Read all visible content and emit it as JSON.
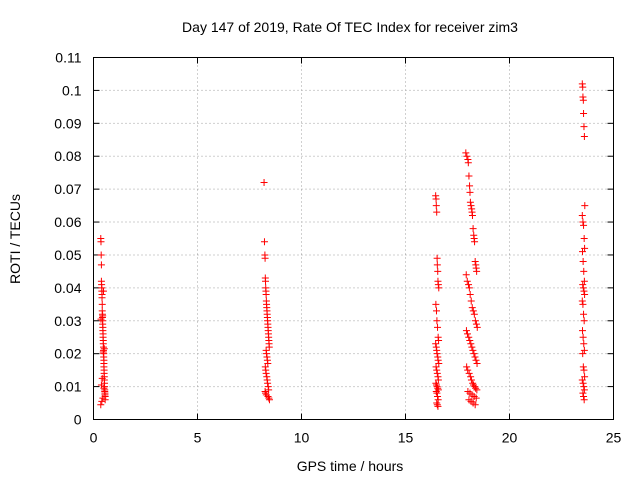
{
  "chart_data": {
    "type": "scatter",
    "title": "Day 147 of 2019, Rate Of TEC Index for receiver zim3",
    "xlabel": "GPS time / hours",
    "ylabel": "ROTI / TECUs",
    "xlim": [
      0,
      25
    ],
    "ylim": [
      0,
      0.11
    ],
    "xticks": [
      0,
      5,
      10,
      15,
      20,
      25
    ],
    "yticks": [
      0,
      0.01,
      0.02,
      0.03,
      0.04,
      0.05,
      0.06,
      0.07,
      0.08,
      0.09,
      0.1,
      0.11
    ],
    "xtick_labels": [
      "0",
      "5",
      "10",
      "15",
      "20",
      "25"
    ],
    "ytick_labels": [
      "0",
      "0.01",
      "0.02",
      "0.03",
      "0.04",
      "0.05",
      "0.06",
      "0.07",
      "0.08",
      "0.09",
      "0.1",
      "0.11"
    ],
    "grid": true,
    "marker": "+",
    "color": "#ff0000",
    "series": [
      {
        "x": [
          0.35,
          0.36,
          0.37,
          0.38,
          0.38,
          0.39,
          0.4,
          0.4,
          0.41,
          0.41,
          0.42,
          0.42,
          0.43,
          0.43,
          0.44,
          0.44,
          0.45,
          0.45,
          0.46,
          0.46,
          0.47,
          0.47,
          0.48,
          0.48,
          0.49,
          0.49,
          0.5,
          0.5,
          0.5,
          0.51,
          0.51,
          0.52,
          0.52,
          0.53,
          0.53,
          0.54,
          0.54,
          0.55,
          0.55,
          0.56,
          0.56,
          0.35,
          0.4,
          0.45,
          0.5,
          0.38,
          0.42,
          0.47,
          0.52,
          0.36,
          0.44,
          0.48
        ],
        "y": [
          0.055,
          0.054,
          0.05,
          0.047,
          0.042,
          0.041,
          0.04,
          0.039,
          0.038,
          0.037,
          0.035,
          0.033,
          0.032,
          0.031,
          0.03,
          0.029,
          0.028,
          0.027,
          0.026,
          0.025,
          0.024,
          0.023,
          0.022,
          0.021,
          0.02,
          0.019,
          0.018,
          0.017,
          0.016,
          0.015,
          0.014,
          0.013,
          0.012,
          0.011,
          0.01,
          0.009,
          0.0085,
          0.008,
          0.0075,
          0.007,
          0.006,
          0.0045,
          0.0055,
          0.0065,
          0.0095,
          0.0105,
          0.0125,
          0.0205,
          0.0215,
          0.0305,
          0.0315,
          0.039
        ]
      },
      {
        "x": [
          8.2,
          8.22,
          8.24,
          8.25,
          8.26,
          8.27,
          8.28,
          8.29,
          8.3,
          8.31,
          8.32,
          8.33,
          8.34,
          8.35,
          8.36,
          8.37,
          8.38,
          8.39,
          8.4,
          8.41,
          8.42,
          8.43,
          8.44,
          8.45,
          8.3,
          8.32,
          8.34,
          8.36,
          8.38,
          8.26,
          8.28,
          8.3,
          8.33,
          8.35,
          8.37,
          8.4,
          8.42,
          8.25,
          8.27,
          8.31,
          8.39,
          8.43,
          8.46
        ],
        "y": [
          0.072,
          0.054,
          0.05,
          0.049,
          0.043,
          0.042,
          0.04,
          0.039,
          0.038,
          0.036,
          0.035,
          0.034,
          0.033,
          0.032,
          0.031,
          0.03,
          0.029,
          0.028,
          0.027,
          0.026,
          0.025,
          0.024,
          0.023,
          0.022,
          0.021,
          0.02,
          0.019,
          0.018,
          0.017,
          0.016,
          0.015,
          0.014,
          0.013,
          0.012,
          0.011,
          0.01,
          0.009,
          0.0085,
          0.008,
          0.0075,
          0.007,
          0.0065,
          0.006
        ]
      },
      {
        "x": [
          16.45,
          16.47,
          16.48,
          16.5,
          16.52,
          16.53,
          16.55,
          16.56,
          16.58,
          16.6,
          16.46,
          16.49,
          16.51,
          16.54,
          16.57,
          16.59,
          16.45,
          16.48,
          16.5,
          16.52,
          16.55,
          16.57,
          16.6,
          16.47,
          16.5,
          16.53,
          16.56,
          16.58,
          16.46,
          16.49,
          16.52,
          16.55,
          16.58,
          16.48,
          16.51,
          16.54,
          16.57,
          16.5,
          16.53,
          16.56
        ],
        "y": [
          0.068,
          0.067,
          0.065,
          0.063,
          0.049,
          0.047,
          0.045,
          0.042,
          0.041,
          0.04,
          0.035,
          0.033,
          0.03,
          0.028,
          0.025,
          0.024,
          0.023,
          0.022,
          0.021,
          0.02,
          0.019,
          0.018,
          0.017,
          0.016,
          0.015,
          0.014,
          0.013,
          0.012,
          0.011,
          0.0105,
          0.01,
          0.0095,
          0.009,
          0.0085,
          0.008,
          0.007,
          0.006,
          0.005,
          0.0045,
          0.004
        ]
      },
      {
        "x": [
          17.9,
          17.95,
          18.0,
          18.02,
          18.05,
          18.08,
          18.1,
          18.12,
          18.15,
          18.18,
          18.2,
          18.22,
          18.25,
          18.28,
          18.3,
          18.32,
          18.35,
          18.38,
          18.4,
          18.42,
          17.92,
          17.97,
          18.03,
          18.07,
          18.11,
          18.16,
          18.21,
          18.26,
          18.31,
          18.36,
          18.41,
          18.45,
          17.93,
          17.98,
          18.04,
          18.09,
          18.14,
          18.19,
          18.24,
          18.29,
          18.34,
          18.39,
          18.44,
          17.94,
          17.99,
          18.06,
          18.13,
          18.17,
          18.23,
          18.27,
          18.33,
          18.37,
          18.43,
          18.0,
          18.1,
          18.2,
          18.3,
          18.4,
          18.05,
          18.15,
          18.25,
          18.35
        ],
        "y": [
          0.081,
          0.08,
          0.079,
          0.078,
          0.074,
          0.071,
          0.069,
          0.066,
          0.065,
          0.064,
          0.063,
          0.062,
          0.058,
          0.056,
          0.055,
          0.054,
          0.048,
          0.047,
          0.046,
          0.045,
          0.044,
          0.042,
          0.041,
          0.04,
          0.038,
          0.036,
          0.034,
          0.033,
          0.032,
          0.03,
          0.029,
          0.028,
          0.027,
          0.026,
          0.025,
          0.024,
          0.023,
          0.022,
          0.021,
          0.02,
          0.019,
          0.018,
          0.017,
          0.016,
          0.015,
          0.014,
          0.013,
          0.012,
          0.011,
          0.0105,
          0.01,
          0.0095,
          0.009,
          0.0085,
          0.008,
          0.0075,
          0.007,
          0.0065,
          0.006,
          0.0055,
          0.005,
          0.0045
        ]
      },
      {
        "x": [
          23.5,
          23.52,
          23.53,
          23.55,
          23.56,
          23.58,
          23.6,
          23.62,
          23.5,
          23.53,
          23.56,
          23.59,
          23.61,
          23.51,
          23.54,
          23.57,
          23.6,
          23.52,
          23.55,
          23.58,
          23.61,
          23.5,
          23.53,
          23.56,
          23.59,
          23.51,
          23.54,
          23.57,
          23.6,
          23.52,
          23.55,
          23.58,
          23.61,
          23.5,
          23.54,
          23.57,
          23.6,
          23.53,
          23.56,
          23.59
        ],
        "y": [
          0.102,
          0.101,
          0.098,
          0.097,
          0.093,
          0.089,
          0.086,
          0.065,
          0.062,
          0.06,
          0.059,
          0.055,
          0.052,
          0.051,
          0.048,
          0.045,
          0.042,
          0.041,
          0.04,
          0.039,
          0.038,
          0.036,
          0.035,
          0.032,
          0.03,
          0.027,
          0.025,
          0.023,
          0.021,
          0.02,
          0.016,
          0.015,
          0.013,
          0.012,
          0.011,
          0.01,
          0.009,
          0.008,
          0.007,
          0.006
        ]
      }
    ]
  }
}
